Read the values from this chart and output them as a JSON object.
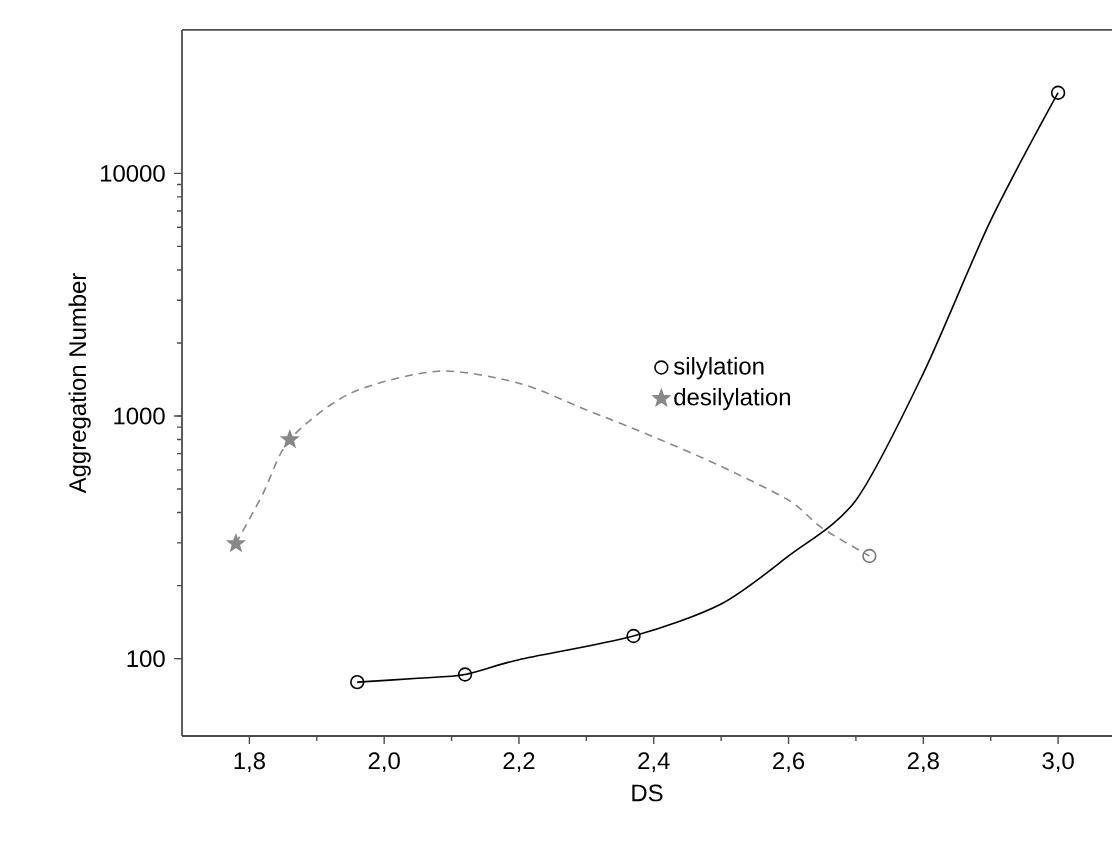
{
  "chart_data": {
    "type": "line",
    "xlabel": "DS",
    "ylabel": "Aggregation Number",
    "log": "y",
    "grid": false,
    "legend": "center",
    "xlim": [
      1.7,
      3.08
    ],
    "ylim": [
      48,
      39000
    ],
    "xticks": [
      {
        "value": 1.8,
        "label": "1,8"
      },
      {
        "value": 2.0,
        "label": "2,0"
      },
      {
        "value": 2.2,
        "label": "2,2"
      },
      {
        "value": 2.4,
        "label": "2,4"
      },
      {
        "value": 2.6,
        "label": "2,6"
      },
      {
        "value": 2.8,
        "label": "2,8"
      },
      {
        "value": 3.0,
        "label": "3,0"
      }
    ],
    "yticks": [
      100,
      1000,
      10000
    ],
    "series": [
      {
        "color": "#000000",
        "marker": "none",
        "line_style": "solid",
        "x": [
          1.96,
          2.05,
          2.12,
          2.2,
          2.37,
          2.5,
          2.6,
          2.7,
          2.8,
          2.9,
          3.0
        ],
        "values": [
          80,
          83,
          86,
          99,
          124,
          168,
          265,
          450,
          1500,
          6400,
          21500
        ]
      },
      {
        "type": "scatter",
        "name": "silylation",
        "color": "#000000",
        "marker": "circle",
        "x": [
          1.96,
          2.12,
          2.37,
          3.0
        ],
        "values": [
          80,
          86,
          124,
          21500
        ]
      },
      {
        "color": "#888888",
        "marker": "none",
        "line_style": "dashed",
        "x": [
          1.78,
          1.82,
          1.86,
          1.95,
          2.08,
          2.2,
          2.3,
          2.4,
          2.5,
          2.6,
          2.65,
          2.72
        ],
        "values": [
          298,
          478,
          800,
          1240,
          1530,
          1365,
          1060,
          820,
          620,
          450,
          345,
          265
        ]
      },
      {
        "type": "scatter",
        "name": "desilylation",
        "color": "#888888",
        "marker": "star",
        "x": [
          1.78,
          1.86
        ],
        "values": [
          298,
          800
        ]
      },
      {
        "type": "scatter",
        "color": "#777777",
        "marker": "circle",
        "x": [
          2.72
        ],
        "values": [
          265
        ]
      }
    ]
  }
}
